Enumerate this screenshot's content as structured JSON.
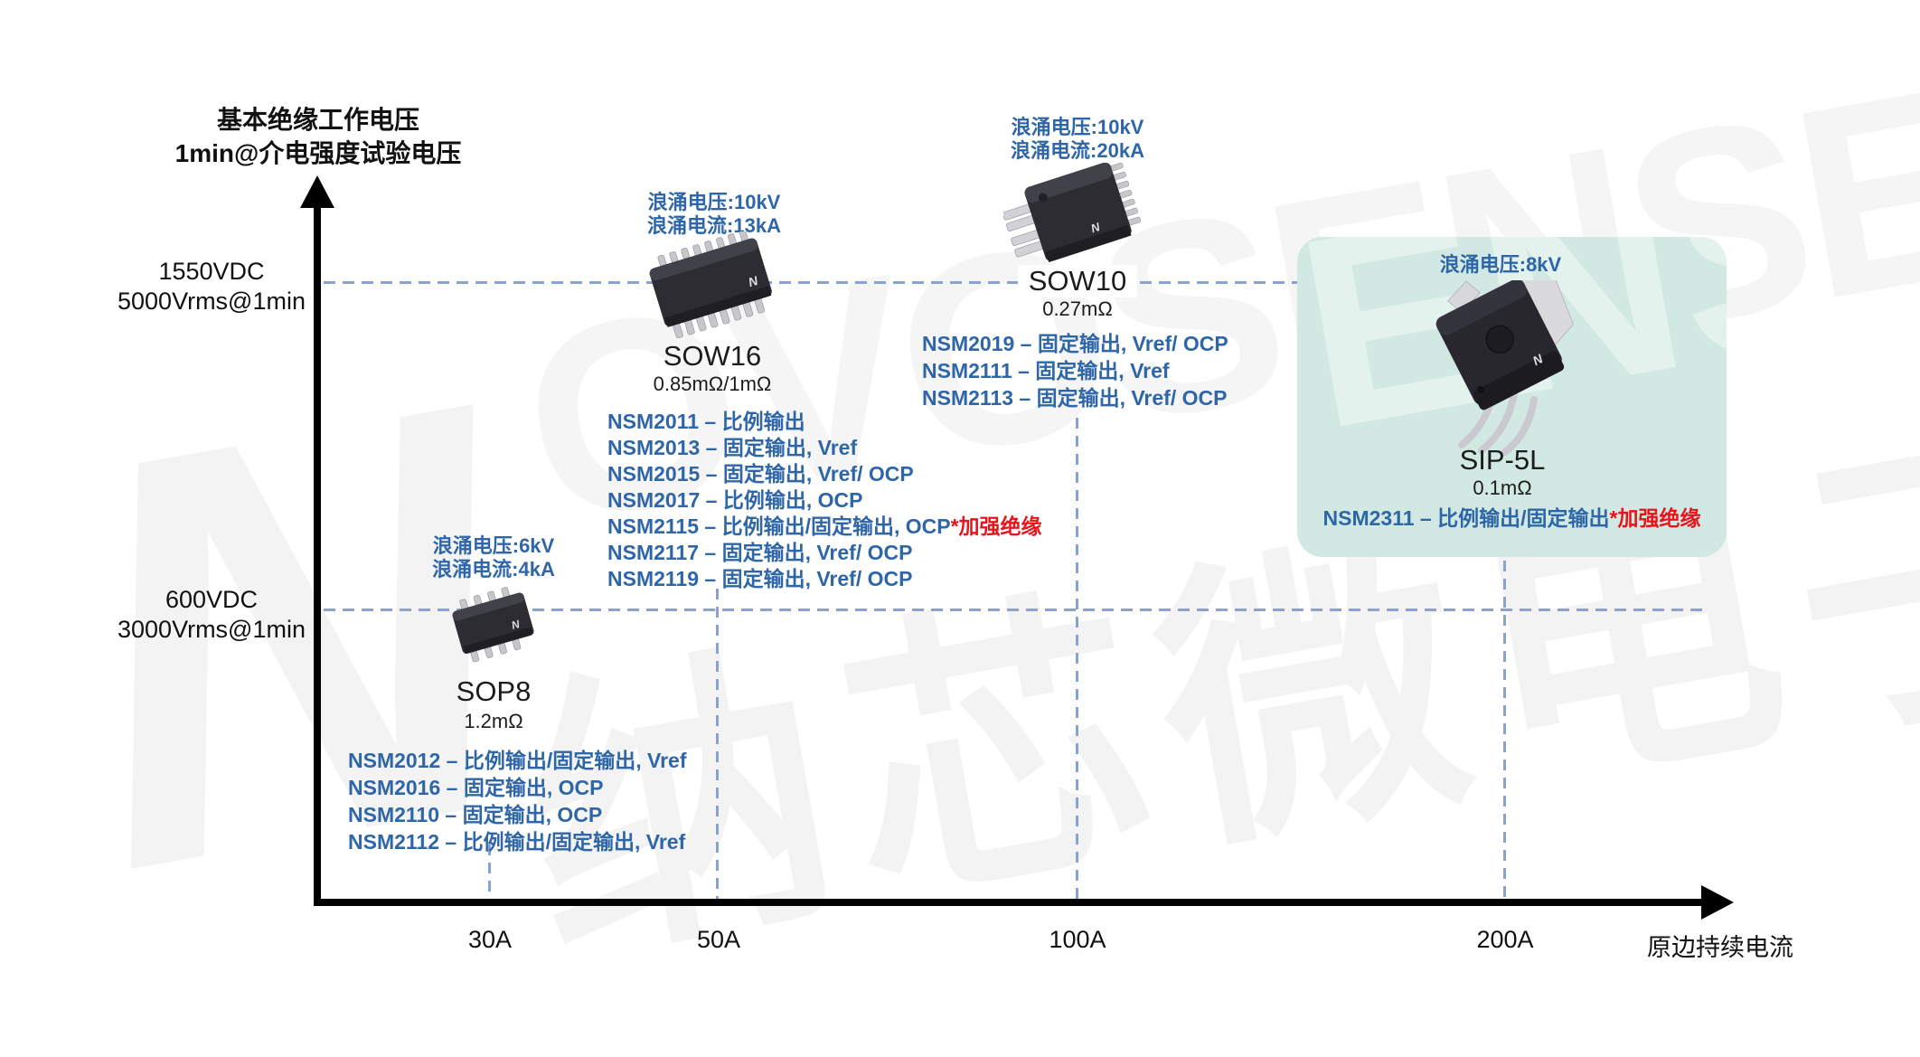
{
  "colors": {
    "accent_blue": "#2e66a8",
    "gridline_blue": "#8aa2cf",
    "highlight_red": "#e8131b",
    "card_teal": "#cde7e0",
    "text_black": "#111111"
  },
  "axis": {
    "y_title_line1": "基本绝缘工作电压",
    "y_title_line2": "1min@介电强度试验电压",
    "x_title": "原边持续电流",
    "y_levels": [
      {
        "dc": "1550VDC",
        "rms": "5000Vrms@1min"
      },
      {
        "dc": "600VDC",
        "rms": "3000Vrms@1min"
      }
    ],
    "x_ticks": [
      "30A",
      "50A",
      "100A",
      "200A"
    ]
  },
  "watermark": {
    "mark": "N",
    "latin": "OVOSENSE",
    "cn": "纳芯微电子",
    "card_letters": "ENS"
  },
  "products": {
    "sow16": {
      "surge": [
        "浪涌电压:10kV",
        "浪涌电流:13kA"
      ],
      "package": "SOW16",
      "resistance": "0.85mΩ/1mΩ",
      "parts": [
        {
          "text": "NSM2011 – 比例输出"
        },
        {
          "text": "NSM2013 – 固定输出, Vref"
        },
        {
          "text": "NSM2015 – 固定输出, Vref/ OCP"
        },
        {
          "text": "NSM2017 – 比例输出, OCP"
        },
        {
          "text": "NSM2115 – 比例输出/固定输出, OCP",
          "highlight": "*加强绝缘"
        },
        {
          "text": "NSM2117 – 固定输出, Vref/ OCP"
        },
        {
          "text": "NSM2119 – 固定输出, Vref/ OCP"
        }
      ]
    },
    "sow10": {
      "surge": [
        "浪涌电压:10kV",
        "浪涌电流:20kA"
      ],
      "package": "SOW10",
      "resistance": "0.27mΩ",
      "parts": [
        {
          "text": "NSM2019 – 固定输出, Vref/ OCP"
        },
        {
          "text": "NSM2111 – 固定输出, Vref"
        },
        {
          "text": "NSM2113 – 固定输出, Vref/ OCP"
        }
      ]
    },
    "sop8": {
      "surge": [
        "浪涌电压:6kV",
        "浪涌电流:4kA"
      ],
      "package": "SOP8",
      "resistance": "1.2mΩ",
      "parts": [
        {
          "text": "NSM2012 – 比例输出/固定输出, Vref"
        },
        {
          "text": "NSM2016 – 固定输出, OCP"
        },
        {
          "text": "NSM2110 – 固定输出, OCP"
        },
        {
          "text": "NSM2112 – 比例输出/固定输出, Vref"
        }
      ]
    },
    "sip5l": {
      "surge": [
        "浪涌电压:8kV"
      ],
      "package": "SIP-5L",
      "resistance": "0.1mΩ",
      "parts": [
        {
          "text": "NSM2311 – 比例输出/固定输出",
          "highlight": "*加强绝缘"
        }
      ]
    }
  }
}
